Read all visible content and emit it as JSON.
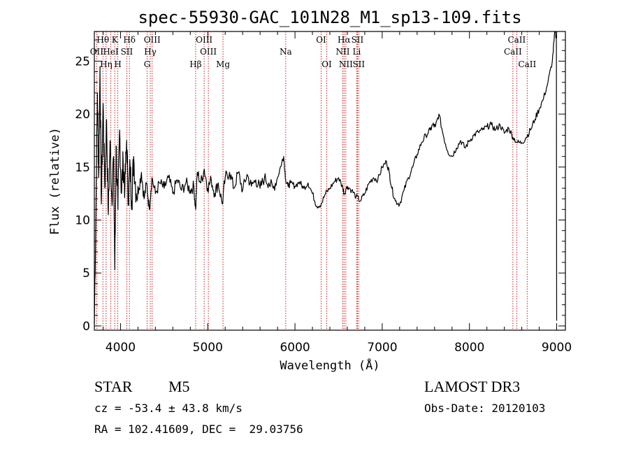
{
  "chart_data": {
    "type": "line",
    "title": "spec-55930-GAC_101N28_M1_sp13-109.fits",
    "xlabel": "Wavelength (Å)",
    "ylabel": "Flux (relative)",
    "xlim": [
      3700,
      9100
    ],
    "ylim": [
      -0.4,
      27.8
    ],
    "x_ticks": [
      4000,
      5000,
      6000,
      7000,
      8000,
      9000
    ],
    "y_ticks": [
      0,
      5,
      10,
      15,
      20,
      25
    ],
    "grid": false,
    "spectrum": {
      "x": [
        3700,
        3720,
        3735,
        3750,
        3765,
        3780,
        3800,
        3820,
        3840,
        3860,
        3880,
        3900,
        3920,
        3935,
        3950,
        3970,
        3990,
        4010,
        4030,
        4050,
        4070,
        4090,
        4110,
        4130,
        4150,
        4180,
        4210,
        4240,
        4270,
        4300,
        4330,
        4360,
        4400,
        4450,
        4500,
        4550,
        4600,
        4650,
        4700,
        4750,
        4800,
        4840,
        4861,
        4880,
        4920,
        4960,
        5000,
        5040,
        5080,
        5120,
        5167,
        5200,
        5250,
        5300,
        5350,
        5400,
        5450,
        5500,
        5550,
        5600,
        5650,
        5700,
        5750,
        5800,
        5850,
        5870,
        5893,
        5920,
        5950,
        6000,
        6050,
        6100,
        6150,
        6200,
        6250,
        6300,
        6350,
        6400,
        6450,
        6500,
        6550,
        6563,
        6600,
        6650,
        6700,
        6750,
        6800,
        6850,
        6900,
        6950,
        7000,
        7050,
        7080,
        7110,
        7150,
        7200,
        7250,
        7300,
        7350,
        7400,
        7450,
        7500,
        7550,
        7580,
        7610,
        7650,
        7700,
        7750,
        7800,
        7850,
        7900,
        7950,
        8000,
        8050,
        8100,
        8150,
        8200,
        8250,
        8300,
        8350,
        8400,
        8450,
        8500,
        8550,
        8600,
        8650,
        8700,
        8750,
        8800,
        8850,
        8900,
        8950,
        8980,
        9000
      ],
      "flux": [
        0.2,
        12.0,
        22.0,
        14.0,
        24.5,
        11.5,
        21.0,
        13.0,
        19.5,
        10.5,
        17.5,
        12.0,
        16.0,
        5.3,
        17.0,
        11.0,
        18.5,
        12.5,
        15.5,
        13.0,
        17.5,
        12.0,
        15.0,
        11.8,
        16.0,
        12.5,
        13.0,
        14.5,
        12.0,
        13.5,
        11.0,
        14.0,
        12.5,
        13.5,
        13.0,
        14.0,
        12.5,
        13.8,
        12.8,
        13.5,
        12.8,
        13.2,
        11.0,
        14.5,
        13.5,
        14.8,
        13.0,
        13.8,
        12.5,
        13.5,
        11.5,
        14.0,
        14.5,
        13.0,
        14.5,
        12.8,
        14.3,
        13.2,
        13.8,
        13.0,
        14.0,
        13.5,
        13.0,
        14.0,
        15.5,
        16.0,
        13.8,
        13.2,
        13.5,
        13.2,
        13.6,
        13.0,
        13.5,
        12.5,
        11.3,
        11.5,
        12.5,
        13.0,
        13.6,
        14.0,
        13.0,
        12.5,
        13.2,
        12.8,
        12.2,
        11.8,
        12.5,
        13.5,
        14.0,
        13.8,
        15.0,
        15.5,
        14.5,
        13.0,
        11.8,
        11.5,
        12.8,
        14.0,
        15.0,
        16.2,
        17.3,
        18.0,
        18.5,
        19.0,
        18.8,
        20.0,
        18.0,
        16.5,
        16.0,
        16.8,
        17.5,
        16.8,
        17.5,
        18.0,
        18.3,
        18.5,
        18.8,
        19.0,
        18.5,
        19.0,
        18.2,
        18.7,
        17.8,
        17.3,
        17.3,
        17.8,
        18.5,
        19.5,
        20.5,
        21.5,
        23.0,
        25.0,
        27.8,
        27.0,
        4.0,
        0.5
      ]
    },
    "spectral_lines": [
      {
        "label": "Hθ",
        "wavelength": 3798,
        "row": 1
      },
      {
        "label": "OII",
        "wavelength": 3727,
        "row": 2
      },
      {
        "label": "Hη",
        "wavelength": 3835,
        "row": 3
      },
      {
        "label": "HeI",
        "wavelength": 3889,
        "row": 2
      },
      {
        "label": "K",
        "wavelength": 3934,
        "row": 1
      },
      {
        "label": "SII",
        "wavelength": 4072,
        "row": 2
      },
      {
        "label": "H",
        "wavelength": 3969,
        "row": 3
      },
      {
        "label": "Hδ",
        "wavelength": 4102,
        "row": 1
      },
      {
        "label": "OIII",
        "wavelength": 4363,
        "row": 1
      },
      {
        "label": "Hγ",
        "wavelength": 4341,
        "row": 2
      },
      {
        "label": "G",
        "wavelength": 4305,
        "row": 3
      },
      {
        "label": "OIII",
        "wavelength": 4959,
        "row": 1
      },
      {
        "label": "OIII",
        "wavelength": 5007,
        "row": 2
      },
      {
        "label": "Hβ",
        "wavelength": 4861,
        "row": 3
      },
      {
        "label": "Mg",
        "wavelength": 5175,
        "row": 3
      },
      {
        "label": "Na",
        "wavelength": 5894,
        "row": 2
      },
      {
        "label": "OI",
        "wavelength": 6300,
        "row": 1
      },
      {
        "label": "OI",
        "wavelength": 6364,
        "row": 3
      },
      {
        "label": "Hα",
        "wavelength": 6563,
        "row": 1
      },
      {
        "label": "SII",
        "wavelength": 6716,
        "row": 1
      },
      {
        "label": "NII",
        "wavelength": 6548,
        "row": 2
      },
      {
        "label": "Li",
        "wavelength": 6708,
        "row": 2
      },
      {
        "label": "NII",
        "wavelength": 6583,
        "row": 3
      },
      {
        "label": "SII",
        "wavelength": 6731,
        "row": 3
      },
      {
        "label": "CaII",
        "wavelength": 8542,
        "row": 1
      },
      {
        "label": "CaII",
        "wavelength": 8498,
        "row": 2
      },
      {
        "label": "CaII",
        "wavelength": 8662,
        "row": 3
      }
    ]
  },
  "info": {
    "object_type": "STAR",
    "subclass": "M5",
    "survey": "LAMOST DR3",
    "velocity": "cz = -53.4 ± 43.8 km/s",
    "obs_date": "Obs-Date: 20120103",
    "coords": "RA = 102.41609, DEC =  29.03756"
  },
  "colors": {
    "spectrum": "#000000",
    "line_markers": "#cc0000",
    "axes": "#000000",
    "background": "#ffffff"
  }
}
